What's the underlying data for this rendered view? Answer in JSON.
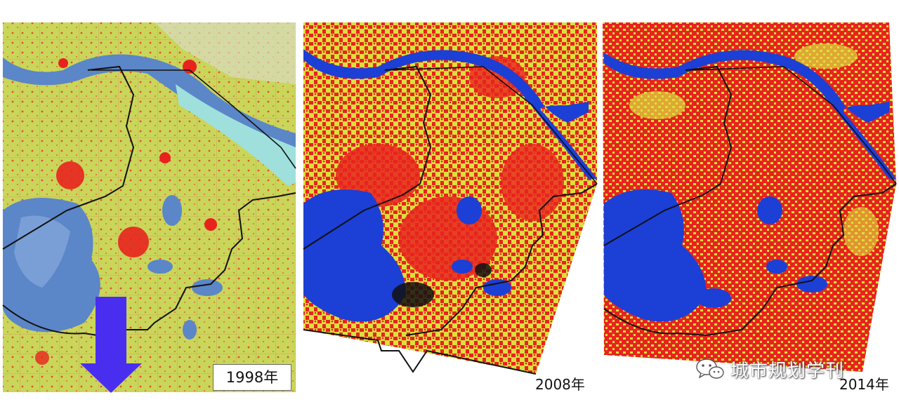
{
  "panels": [
    {
      "year_label": "1998年"
    },
    {
      "year_label": "2008年"
    },
    {
      "year_label": "2014年"
    }
  ],
  "watermark": {
    "text": "城市规划学刊",
    "icon": "wechat-icon"
  },
  "arrow": {
    "icon": "arrow-down-icon",
    "direction": "down"
  },
  "colors": {
    "farmland_1998": "#c9d65a",
    "farmland_later": "#dcdf3c",
    "urban": "#e8231e",
    "water_1998": "#5b86c8",
    "water_later": "#1c3fd6",
    "river_1998": "#9fe0dc",
    "boundary": "#111111",
    "arrow": "#4a2ef0"
  }
}
